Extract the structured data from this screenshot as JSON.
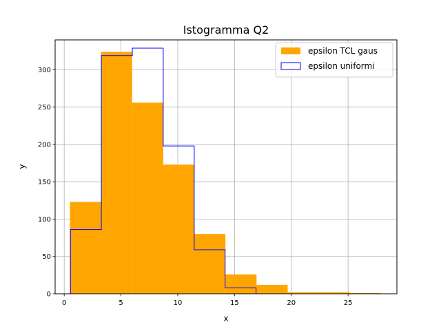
{
  "chart_data": {
    "type": "bar",
    "title": "Istogramma Q2",
    "xlabel": "x",
    "ylabel": "y",
    "xlim": [
      -0.8,
      29.3
    ],
    "ylim": [
      0,
      340
    ],
    "xticks": [
      0,
      5,
      10,
      15,
      20,
      25
    ],
    "yticks": [
      0,
      50,
      100,
      150,
      200,
      250,
      300
    ],
    "grid": true,
    "legend_position": "top-right",
    "series": [
      {
        "name": "epsilon TCL gaus",
        "style": "filled",
        "color": "#ffa500",
        "bin_edges": [
          0.5,
          3.24,
          5.98,
          8.72,
          11.46,
          14.2,
          16.94,
          19.68,
          22.42,
          25.16,
          27.9
        ],
        "values": [
          123,
          324,
          256,
          173,
          80,
          26,
          12,
          2,
          2,
          1
        ]
      },
      {
        "name": "epsilon uniformi",
        "style": "step",
        "color": "#0000ff",
        "bin_edges": [
          0.55,
          3.27,
          6.0,
          8.72,
          11.45,
          14.17,
          16.9
        ],
        "values": [
          86,
          319,
          329,
          198,
          59,
          8
        ]
      }
    ]
  }
}
